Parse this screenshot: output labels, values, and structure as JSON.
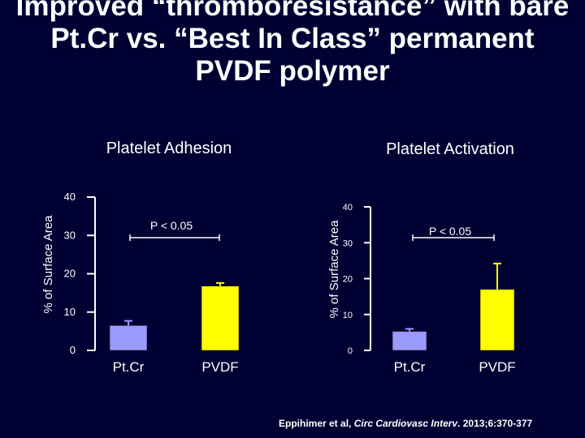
{
  "slide": {
    "title_lines": [
      "Improved “thromboresistance” with bare",
      "Pt.Cr vs. “Best In Class” permanent",
      "PVDF polymer"
    ],
    "citation": {
      "prefix": "Eppihimer et al, ",
      "journal": "Circ Cardiovasc Interv",
      "suffix": ". 2013;6:370-377"
    }
  },
  "colors": {
    "background": "#000033",
    "text": "#ffffff",
    "ptcr_bar": "#9999ff",
    "pvdf_bar": "#ffff00"
  },
  "chart_data": [
    {
      "type": "bar",
      "title": "Platelet Adhesion",
      "ylabel": "% of Surface Area",
      "xlabel": "",
      "categories": [
        "Pt.Cr",
        "PVDF"
      ],
      "values": [
        6.5,
        16.8
      ],
      "error_plus": [
        1.2,
        0.8
      ],
      "ylim": [
        0,
        40
      ],
      "yticks": [
        0,
        10,
        20,
        30,
        40
      ],
      "significance": {
        "text": "P < 0.05",
        "between": [
          "Pt.Cr",
          "PVDF"
        ]
      },
      "grid": false
    },
    {
      "type": "bar",
      "title": "Platelet Activation",
      "ylabel": "% of Surface Area",
      "xlabel": "",
      "categories": [
        "Pt.Cr",
        "PVDF"
      ],
      "values": [
        5.3,
        17.0
      ],
      "error_plus": [
        0.7,
        7.2
      ],
      "ylim": [
        0,
        40
      ],
      "yticks": [
        0,
        10,
        20,
        30,
        40
      ],
      "significance": {
        "text": "P < 0.05",
        "between": [
          "Pt.Cr",
          "PVDF"
        ]
      },
      "grid": false
    }
  ]
}
